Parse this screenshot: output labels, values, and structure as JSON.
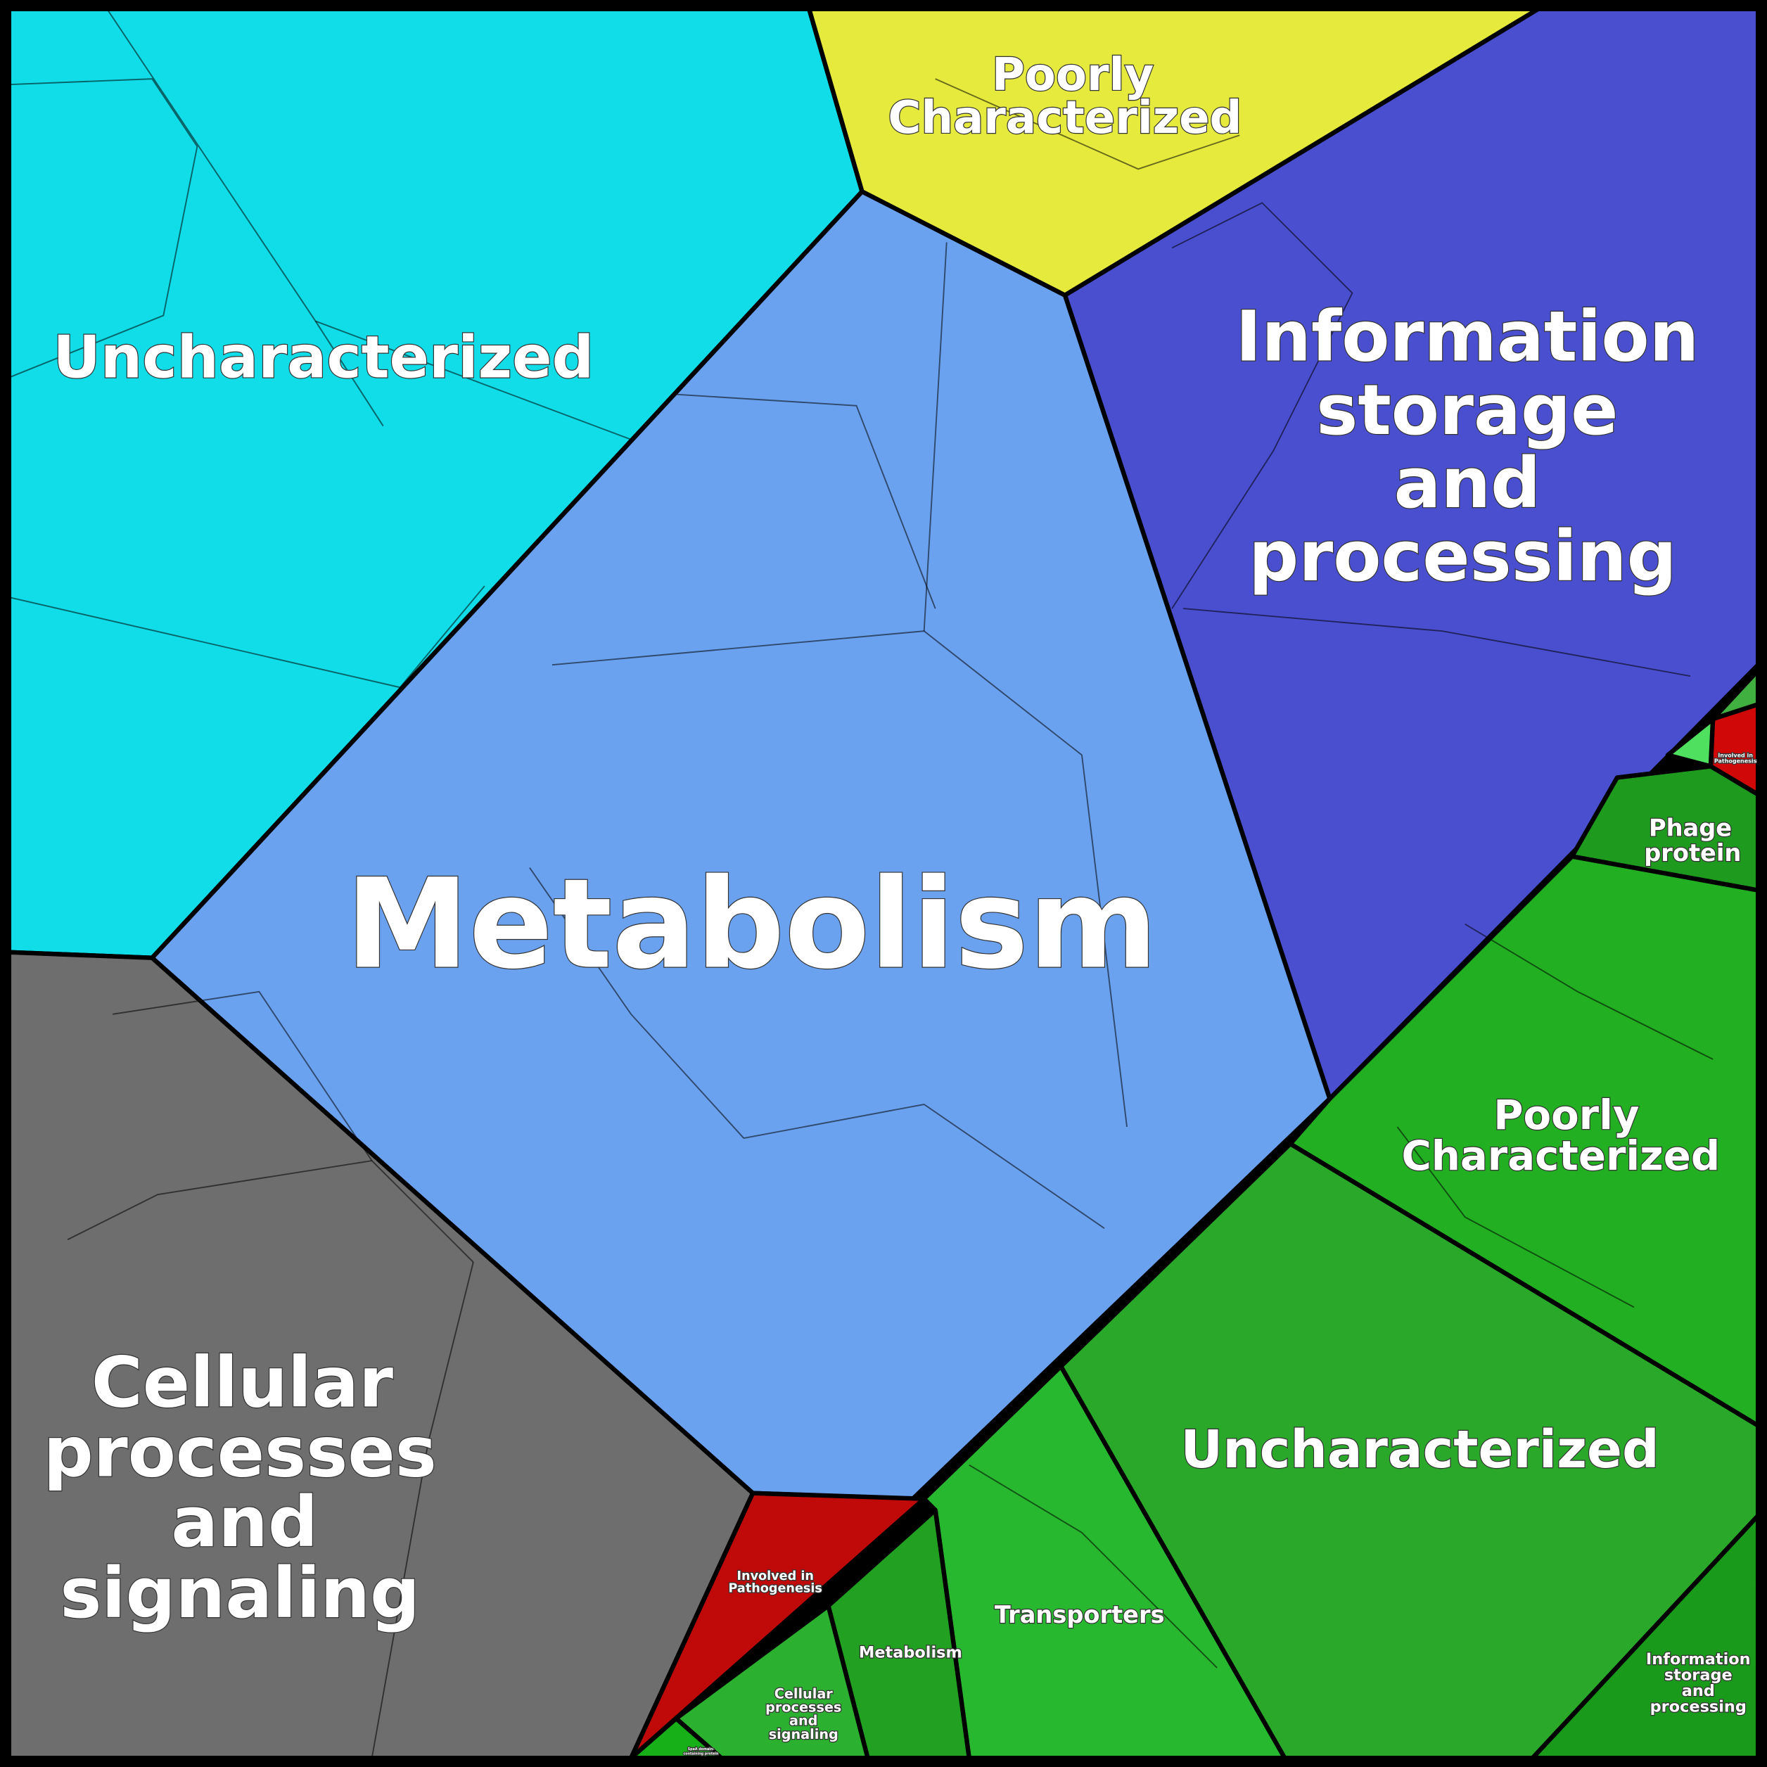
{
  "groups": {
    "uncharacterized": {
      "label": "Uncharacterized",
      "color": "#10dde8"
    },
    "poorly_characterized": {
      "label": [
        "Poorly",
        "Characterized"
      ],
      "color": "#e6ea3c"
    },
    "information": {
      "label": [
        "Information",
        "storage",
        "and",
        "processing"
      ],
      "color": "#4a4fd0"
    },
    "metabolism": {
      "label": "Metabolism",
      "color": "#6aa2f0"
    },
    "cellular": {
      "label": [
        "Cellular",
        "processes",
        "and",
        "signaling"
      ],
      "color": "#6e6e6e"
    },
    "pathogenesis": {
      "label": [
        "Involved in",
        "Pathogenesis"
      ],
      "color": "#c00a0a"
    }
  },
  "green_group": {
    "color": "#2aa82a",
    "subgroups": {
      "uncharacterized": {
        "label": "Uncharacterized"
      },
      "poorly_characterized": {
        "label": [
          "Poorly",
          "Characterized"
        ]
      },
      "phage": {
        "label": [
          "Phage",
          "protein"
        ]
      },
      "pathogenesis": {
        "label": [
          "Involved in",
          "Pathogenesis"
        ],
        "color": "#d00808"
      },
      "transporters": {
        "label": "Transporters"
      },
      "metabolism": {
        "label": "Metabolism"
      },
      "cellular": {
        "label": [
          "Cellular",
          "processes",
          "and",
          "signaling"
        ]
      },
      "information": {
        "label": [
          "Information",
          "storage",
          "and",
          "processing"
        ]
      },
      "spaa": {
        "label": [
          "SpaA domain-",
          "containing protein"
        ]
      }
    }
  }
}
